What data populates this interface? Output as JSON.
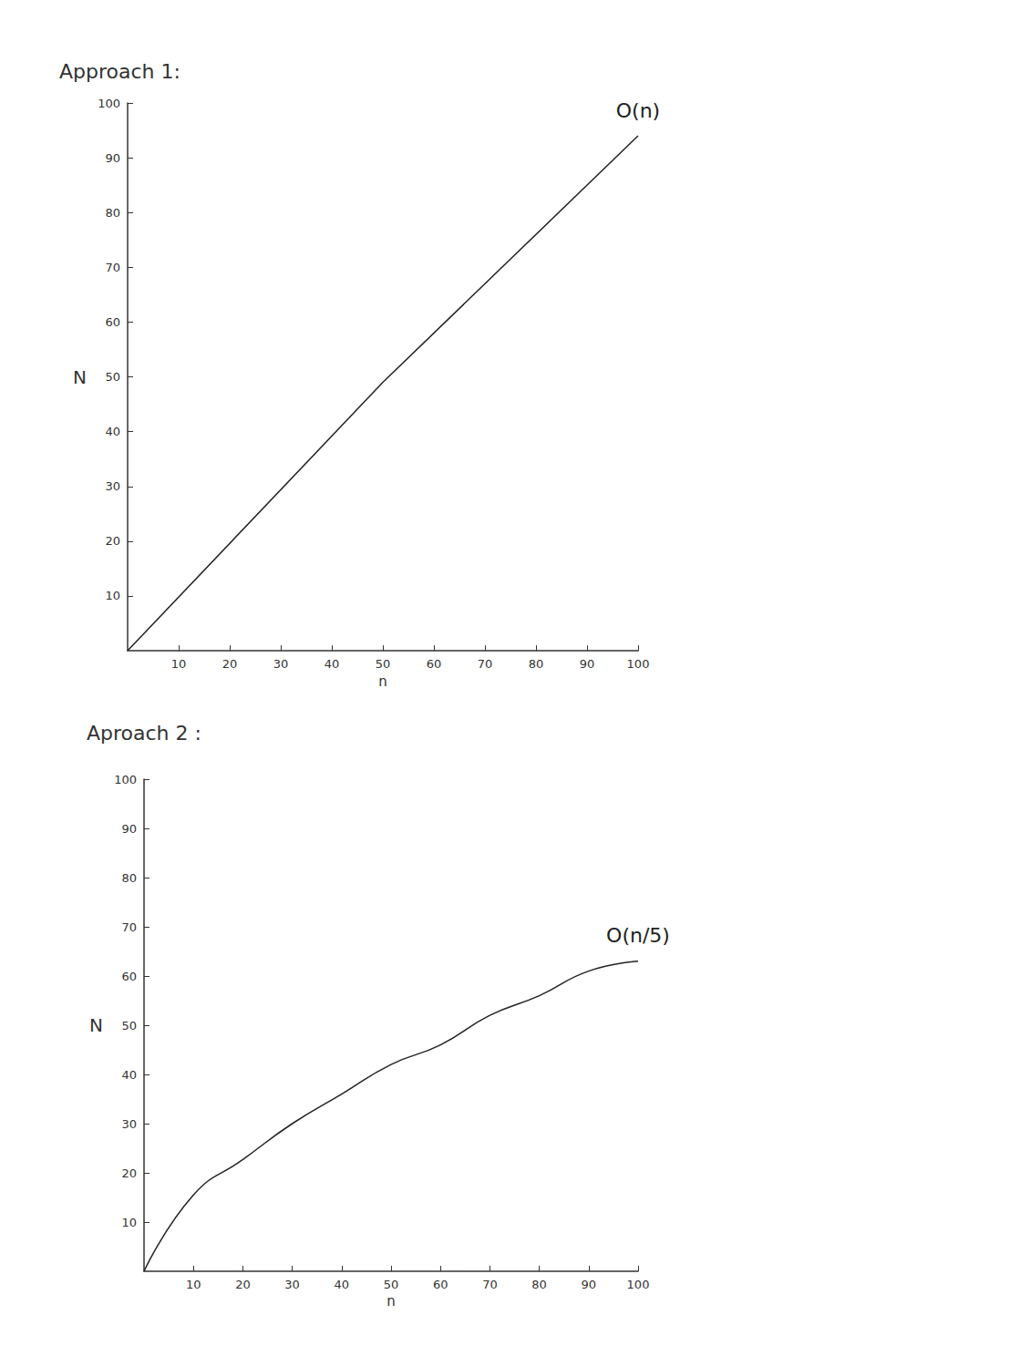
{
  "chart_data": [
    {
      "type": "line",
      "title": "Approach 1:",
      "x_label": "n",
      "y_label": "N",
      "x": [
        0,
        50,
        100
      ],
      "values": [
        0,
        49,
        94
      ],
      "xlim": [
        0,
        100
      ],
      "xticks": [
        10,
        20,
        30,
        40,
        50,
        60,
        70,
        80,
        90,
        100
      ],
      "ylim": [
        0,
        100
      ],
      "yticks": [
        10,
        20,
        30,
        40,
        50,
        60,
        70,
        80,
        90,
        100
      ],
      "grid": false,
      "color": "#222222",
      "annotation": "O(n)"
    },
    {
      "type": "line",
      "title": "Aproach 2 :",
      "x_label": "n",
      "y_label": "N",
      "x": [
        0,
        10,
        20,
        30,
        40,
        50,
        60,
        70,
        80,
        90,
        100
      ],
      "values": [
        0,
        15.5,
        22.7,
        30,
        36,
        42,
        46,
        52,
        56,
        61,
        63
      ],
      "xlim": [
        0,
        100
      ],
      "xticks": [
        10,
        20,
        30,
        40,
        50,
        60,
        70,
        80,
        90,
        100
      ],
      "ylim": [
        0,
        100
      ],
      "yticks": [
        10,
        20,
        30,
        40,
        50,
        60,
        70,
        80,
        90,
        100
      ],
      "grid": false,
      "color": "#222222",
      "annotation": "O(n/5)"
    }
  ]
}
